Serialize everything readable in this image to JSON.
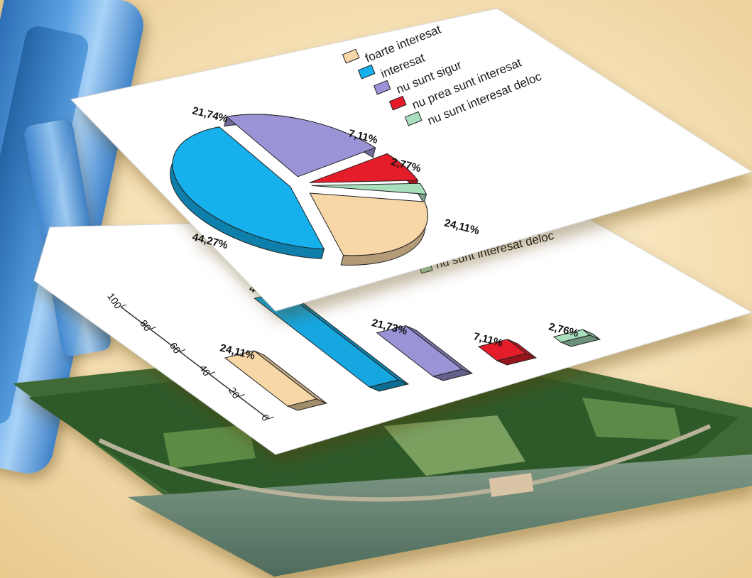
{
  "chart_data": [
    {
      "type": "pie",
      "title": "",
      "legend": {
        "placement": "top-right",
        "entries": [
          {
            "label": "foarte interesat",
            "color": "#f8d7a6"
          },
          {
            "label": "interesat",
            "color": "#12b0ec"
          },
          {
            "label": "nu sunt sigur",
            "color": "#9a93d6"
          },
          {
            "label": "nu prea sunt interesat",
            "color": "#e51f2a"
          },
          {
            "label": "nu sunt interesat deloc",
            "color": "#a8e0bd"
          }
        ]
      },
      "slices": [
        {
          "name": "foarte interesat",
          "value": 24.11,
          "label": "24,11%",
          "color": "#f8d7a6"
        },
        {
          "name": "interesat",
          "value": 44.27,
          "label": "44,27%",
          "color": "#12b0ec"
        },
        {
          "name": "nu sunt sigur",
          "value": 21.74,
          "label": "21,74%",
          "color": "#9a93d6"
        },
        {
          "name": "nu prea sunt interesat",
          "value": 7.11,
          "label": "7,11%",
          "color": "#e51f2a"
        },
        {
          "name": "nu sunt interesat deloc",
          "value": 2.77,
          "label": "2,77%",
          "color": "#a8e0bd"
        }
      ]
    },
    {
      "type": "bar",
      "title": "",
      "xlabel": "",
      "ylabel": "",
      "ylim": [
        0,
        100
      ],
      "yticks": [
        "0",
        "20",
        "40",
        "60",
        "80",
        "100"
      ],
      "grid": false,
      "visible_legend_entry": "nu sunt interesat deloc",
      "bars": [
        {
          "name": "foarte interesat",
          "value": 24.11,
          "label": "24,11%",
          "color": "#f8d7a6"
        },
        {
          "name": "interesat",
          "value": 44.28,
          "label": "44,28",
          "color": "#12a7e0"
        },
        {
          "name": "nu sunt sigur",
          "value": 21.73,
          "label": "21,73%",
          "color": "#9a93d6"
        },
        {
          "name": "nu prea sunt interesat",
          "value": 7.11,
          "label": "7,11%",
          "color": "#e51f2a"
        },
        {
          "name": "nu sunt interesat deloc",
          "value": 2.76,
          "label": "2,76%",
          "color": "#a8e0bd"
        }
      ]
    }
  ]
}
